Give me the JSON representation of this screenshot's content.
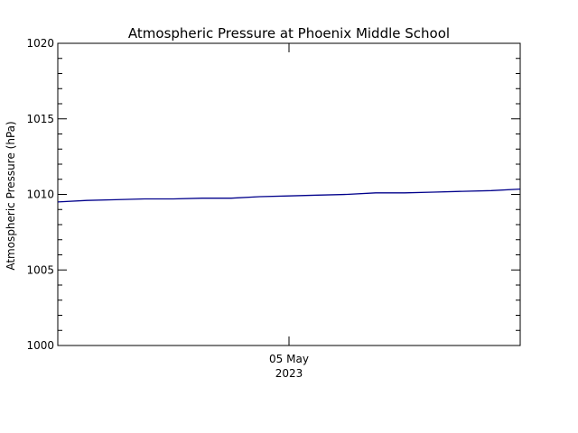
{
  "chart_data": {
    "type": "line",
    "title": "Atmospheric Pressure at Phoenix Middle School",
    "ylabel": "Atmospheric Pressure (hPa)",
    "xlabel_date": "05 May",
    "xlabel_year": "2023",
    "ylim": [
      1000,
      1020
    ],
    "yticks": [
      "1000",
      "1005",
      "1010",
      "1015",
      "1020"
    ],
    "y_minor_step": 1,
    "xlim": [
      "2023-05-04T00:00",
      "2023-05-06T00:00"
    ],
    "x_major_tick": "2023-05-05T00:00",
    "grid": false,
    "line_color": "#00008b",
    "x": [
      "2023-05-04T00:00",
      "2023-05-04T03:00",
      "2023-05-04T06:00",
      "2023-05-04T09:00",
      "2023-05-04T12:00",
      "2023-05-04T15:00",
      "2023-05-04T18:00",
      "2023-05-04T21:00",
      "2023-05-05T00:00",
      "2023-05-05T03:00",
      "2023-05-05T06:00",
      "2023-05-05T09:00",
      "2023-05-05T12:00",
      "2023-05-05T15:00",
      "2023-05-05T18:00",
      "2023-05-05T21:00",
      "2023-05-06T00:00"
    ],
    "values": [
      1009.5,
      1009.6,
      1009.65,
      1009.7,
      1009.7,
      1009.75,
      1009.75,
      1009.85,
      1009.9,
      1009.95,
      1010.0,
      1010.1,
      1010.1,
      1010.15,
      1010.2,
      1010.25,
      1010.35
    ]
  }
}
